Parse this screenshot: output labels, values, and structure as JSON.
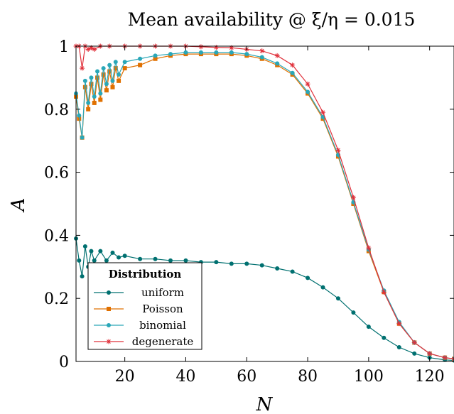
{
  "chart_data": {
    "type": "line",
    "title": "Mean availability @ ξ/η = 0.015",
    "xlabel": "N",
    "ylabel": "A",
    "xlim": [
      4,
      128
    ],
    "ylim": [
      0,
      1
    ],
    "xticks": [
      20,
      40,
      60,
      80,
      100,
      120
    ],
    "yticks": [
      0,
      0.2,
      0.4,
      0.6,
      0.8,
      1
    ],
    "xtick_labels": [
      "20",
      "40",
      "60",
      "80",
      "100",
      "120"
    ],
    "ytick_labels": [
      "0",
      "0.2",
      "0.4",
      "0.6",
      "0.8",
      "1"
    ],
    "grid": false,
    "legend": {
      "title": "Distribution",
      "placement": "bottom-left"
    },
    "series": [
      {
        "name": "uniform",
        "color": "#007070",
        "marker": "circle",
        "x": [
          4,
          5,
          6,
          7,
          8,
          9,
          10,
          12,
          14,
          16,
          18,
          20,
          25,
          30,
          35,
          40,
          45,
          50,
          55,
          60,
          65,
          70,
          75,
          80,
          85,
          90,
          95,
          100,
          105,
          110,
          115,
          120,
          125,
          128
        ],
        "y": [
          0.39,
          0.32,
          0.27,
          0.365,
          0.3,
          0.35,
          0.32,
          0.35,
          0.32,
          0.345,
          0.33,
          0.335,
          0.325,
          0.325,
          0.32,
          0.32,
          0.315,
          0.315,
          0.31,
          0.31,
          0.305,
          0.295,
          0.285,
          0.265,
          0.235,
          0.2,
          0.155,
          0.11,
          0.075,
          0.045,
          0.025,
          0.012,
          0.005,
          0.003
        ]
      },
      {
        "name": "Poisson",
        "color": "#e07000",
        "marker": "square",
        "x": [
          4,
          5,
          6,
          7,
          8,
          9,
          10,
          11,
          12,
          13,
          14,
          15,
          16,
          17,
          18,
          20,
          25,
          30,
          35,
          40,
          45,
          50,
          55,
          60,
          65,
          70,
          75,
          80,
          85,
          90,
          95,
          100,
          105,
          110,
          115,
          120,
          125,
          128
        ],
        "y": [
          0.84,
          0.77,
          0.71,
          0.87,
          0.8,
          0.88,
          0.82,
          0.9,
          0.83,
          0.91,
          0.86,
          0.92,
          0.87,
          0.93,
          0.89,
          0.93,
          0.94,
          0.96,
          0.97,
          0.975,
          0.975,
          0.975,
          0.975,
          0.97,
          0.96,
          0.94,
          0.91,
          0.85,
          0.77,
          0.65,
          0.5,
          0.35,
          0.22,
          0.12,
          0.06,
          0.025,
          0.012,
          0.008
        ]
      },
      {
        "name": "binomial",
        "color": "#2aa7b8",
        "marker": "circle",
        "x": [
          4,
          5,
          6,
          7,
          8,
          9,
          10,
          11,
          12,
          13,
          14,
          15,
          16,
          17,
          18,
          20,
          25,
          30,
          35,
          40,
          45,
          50,
          55,
          60,
          65,
          70,
          75,
          80,
          85,
          90,
          95,
          100,
          105,
          110,
          115,
          120,
          125,
          128
        ],
        "y": [
          0.85,
          0.78,
          0.71,
          0.89,
          0.82,
          0.9,
          0.84,
          0.92,
          0.85,
          0.93,
          0.88,
          0.94,
          0.89,
          0.95,
          0.91,
          0.95,
          0.96,
          0.97,
          0.975,
          0.98,
          0.98,
          0.98,
          0.98,
          0.975,
          0.965,
          0.945,
          0.915,
          0.855,
          0.775,
          0.655,
          0.505,
          0.355,
          0.225,
          0.125,
          0.06,
          0.025,
          0.012,
          0.008
        ]
      },
      {
        "name": "degenerate",
        "color": "#e0303a",
        "marker": "star",
        "x": [
          4,
          5,
          6,
          7,
          8,
          9,
          10,
          12,
          15,
          20,
          25,
          30,
          35,
          40,
          45,
          50,
          55,
          60,
          65,
          70,
          75,
          80,
          85,
          90,
          95,
          100,
          105,
          110,
          115,
          120,
          125,
          128
        ],
        "y": [
          1,
          1,
          0.93,
          1,
          0.99,
          0.995,
          0.99,
          1,
          1,
          1,
          1,
          1,
          1,
          1,
          0.998,
          0.996,
          0.995,
          0.99,
          0.985,
          0.97,
          0.94,
          0.88,
          0.79,
          0.67,
          0.52,
          0.36,
          0.22,
          0.12,
          0.06,
          0.025,
          0.012,
          0.008
        ]
      }
    ]
  }
}
